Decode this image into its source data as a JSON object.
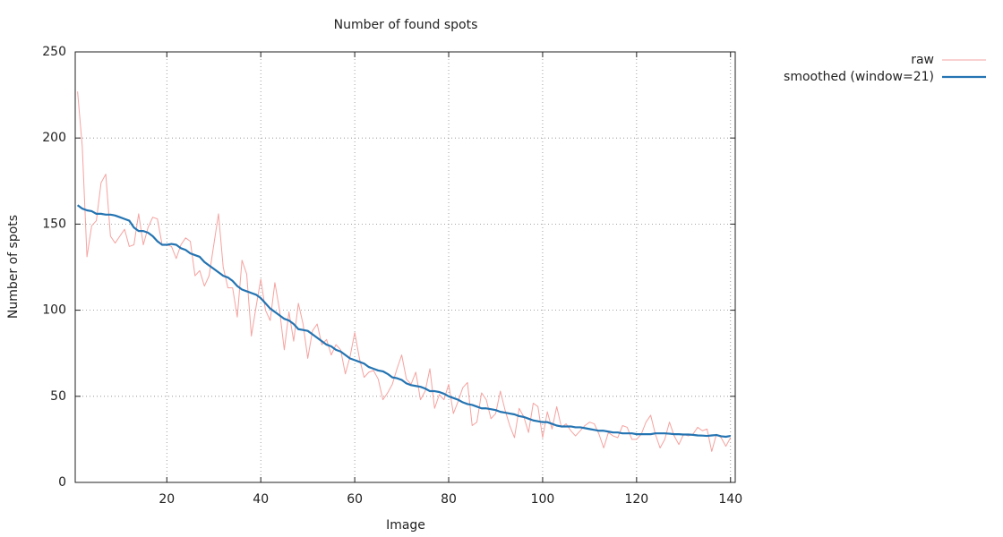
{
  "chart_data": {
    "type": "line",
    "title": "Number of found spots",
    "x_label": "Image",
    "y_label": "Number of spots",
    "x": [
      1,
      2,
      3,
      4,
      5,
      6,
      7,
      8,
      9,
      10,
      11,
      12,
      13,
      14,
      15,
      16,
      17,
      18,
      19,
      20,
      21,
      22,
      23,
      24,
      25,
      26,
      27,
      28,
      29,
      30,
      31,
      32,
      33,
      34,
      35,
      36,
      37,
      38,
      39,
      40,
      41,
      42,
      43,
      44,
      45,
      46,
      47,
      48,
      49,
      50,
      51,
      52,
      53,
      54,
      55,
      56,
      57,
      58,
      59,
      60,
      61,
      62,
      63,
      64,
      65,
      66,
      67,
      68,
      69,
      70,
      71,
      72,
      73,
      74,
      75,
      76,
      77,
      78,
      79,
      80,
      81,
      82,
      83,
      84,
      85,
      86,
      87,
      88,
      89,
      90,
      91,
      92,
      93,
      94,
      95,
      96,
      97,
      98,
      99,
      100,
      101,
      102,
      103,
      104,
      105,
      106,
      107,
      108,
      109,
      110,
      111,
      112,
      113,
      114,
      115,
      116,
      117,
      118,
      119,
      120,
      121,
      122,
      123,
      124,
      125,
      126,
      127,
      128,
      129,
      130,
      131,
      132,
      133,
      134,
      135,
      136,
      137,
      138,
      139,
      140
    ],
    "series": [
      {
        "name": "raw",
        "color": "#f4a3a0",
        "width": 1,
        "values": [
          227,
          195,
          131,
          149,
          152,
          174,
          179,
          143,
          139,
          143,
          147,
          137,
          138,
          156,
          138,
          148,
          154,
          153,
          138,
          138,
          137,
          130,
          138,
          142,
          140,
          120,
          123,
          114,
          120,
          138,
          156,
          125,
          113,
          113,
          96,
          129,
          121,
          85,
          102,
          118,
          100,
          94,
          116,
          100,
          77,
          99,
          82,
          104,
          92,
          72,
          88,
          92,
          80,
          83,
          74,
          80,
          77,
          63,
          73,
          87,
          72,
          61,
          64,
          65,
          60,
          48,
          52,
          57,
          66,
          74,
          60,
          57,
          64,
          48,
          53,
          66,
          43,
          51,
          48,
          57,
          40,
          47,
          55,
          58,
          33,
          35,
          52,
          48,
          37,
          40,
          53,
          42,
          33,
          26,
          43,
          38,
          29,
          46,
          44,
          26,
          41,
          31,
          44,
          32,
          34,
          30,
          27,
          30,
          33,
          35,
          34,
          28,
          20,
          29,
          27,
          26,
          33,
          32,
          25,
          25,
          28,
          35,
          39,
          28,
          20,
          25,
          35,
          27,
          22,
          28,
          27,
          28,
          32,
          30,
          31,
          18,
          28,
          26,
          21,
          26
        ]
      },
      {
        "name": "smoothed (window=21)",
        "color": "#2474b2",
        "width": 2.2,
        "values": [
          161,
          159,
          158,
          157.5,
          156,
          156,
          155.5,
          155.5,
          155,
          154,
          153,
          152,
          148,
          146,
          146,
          145,
          143,
          140,
          138,
          138,
          138.5,
          138,
          136,
          135,
          133,
          132,
          131,
          128,
          126,
          124,
          122,
          120,
          119,
          117,
          114,
          112,
          111,
          110,
          109,
          107,
          104,
          101,
          99,
          97,
          95,
          94,
          92,
          89,
          88.5,
          88,
          86,
          84,
          82,
          80,
          79,
          77,
          76,
          74,
          72,
          71,
          70,
          69,
          67,
          66,
          65,
          64.5,
          63,
          61,
          60.5,
          59.5,
          57.5,
          56.5,
          56,
          55.5,
          54.5,
          53,
          53,
          52.5,
          51.5,
          50,
          49,
          48,
          46.5,
          45.5,
          45,
          44,
          43,
          43,
          42.5,
          42,
          41,
          40.5,
          40,
          39.5,
          38.5,
          38,
          37,
          36,
          35.5,
          35,
          35,
          34,
          33,
          32.5,
          32.5,
          32.5,
          32,
          32,
          31.5,
          31,
          30.5,
          30,
          30,
          29.5,
          29,
          29,
          28.5,
          28.5,
          28.5,
          28,
          28,
          28,
          28,
          28.5,
          28.5,
          28.5,
          28.3,
          28,
          28,
          27.8,
          27.8,
          27.6,
          27.3,
          27.2,
          27,
          27.3,
          27.5,
          26.8,
          26.5,
          27
        ]
      }
    ],
    "xlim": [
      0.5,
      141
    ],
    "ylim": [
      0,
      250
    ],
    "xticks": [
      20,
      40,
      60,
      80,
      100,
      120,
      140
    ],
    "yticks": [
      0,
      50,
      100,
      150,
      200,
      250
    ],
    "grid": true,
    "legend": "outside-top-right"
  }
}
